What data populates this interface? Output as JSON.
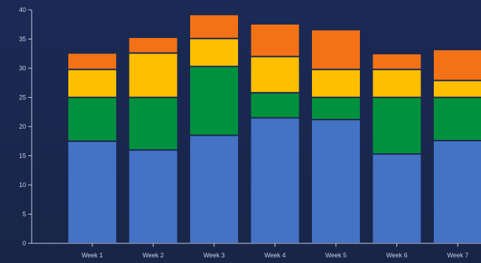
{
  "chart_data": {
    "type": "bar",
    "stacked": true,
    "categories": [
      "Week 1",
      "Week 2",
      "Week 3",
      "Week 4",
      "Week 5",
      "Week 6",
      "Week 7"
    ],
    "series": [
      {
        "values": [
          17.5,
          16,
          18.5,
          21.5,
          21.2,
          15.3,
          17.6
        ],
        "color": "#4472c4"
      },
      {
        "values": [
          7.5,
          9,
          11.8,
          4.3,
          3.8,
          9.7,
          7.4
        ],
        "color": "#00913f"
      },
      {
        "values": [
          4.8,
          7.6,
          4.8,
          6.2,
          4.8,
          4.8,
          2.9
        ],
        "color": "#ffbf00"
      },
      {
        "values": [
          2.8,
          2.7,
          4.1,
          5.6,
          6.8,
          2.7,
          5.3
        ],
        "color": "#f47216"
      }
    ],
    "ylim": [
      0,
      40
    ],
    "yticks": [
      0,
      5,
      10,
      15,
      20,
      25,
      30,
      35,
      40
    ],
    "grid": false,
    "legend": "none"
  }
}
